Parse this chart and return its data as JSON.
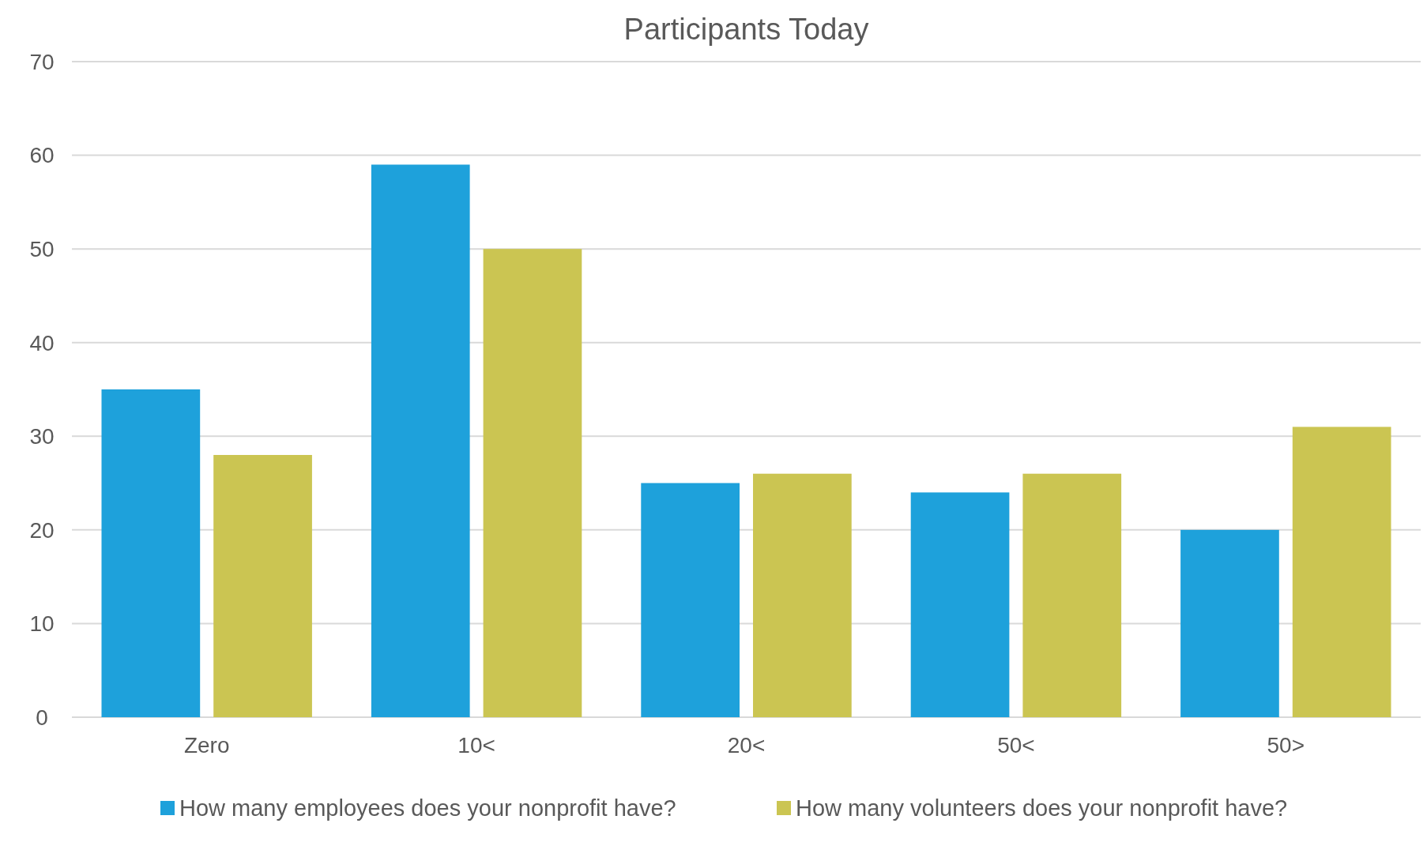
{
  "chart_data": {
    "type": "bar",
    "title": "Participants Today",
    "categories": [
      "Zero",
      "10<",
      "20<",
      "50<",
      "50>"
    ],
    "series": [
      {
        "name": "How many employees does your nonprofit have?",
        "color": "#1ea1db",
        "values": [
          35,
          59,
          25,
          24,
          20
        ]
      },
      {
        "name": "How many volunteers does your nonprofit have?",
        "color": "#cbc552",
        "values": [
          28,
          50,
          26,
          26,
          31
        ]
      }
    ],
    "ylim": [
      0,
      70
    ],
    "yticks": [
      0,
      10,
      20,
      30,
      40,
      50,
      60,
      70
    ],
    "grid": "y",
    "legend": "bottom"
  }
}
